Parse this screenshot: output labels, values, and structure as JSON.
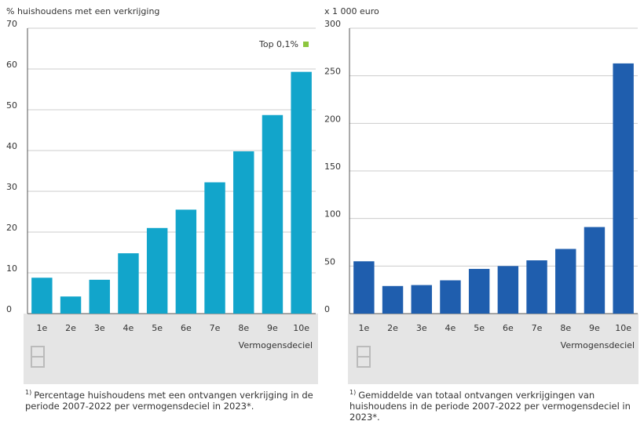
{
  "chart_data": [
    {
      "type": "bar",
      "y_label": "% huishoudens met een verkrijging",
      "categories": [
        "1e",
        "2e",
        "3e",
        "4e",
        "5e",
        "6e",
        "7e",
        "8e",
        "9e",
        "10e"
      ],
      "values": [
        8.8,
        4.2,
        8.3,
        14.8,
        21,
        25.5,
        32.2,
        39.8,
        48.7,
        59.3
      ],
      "color": "#12a5cb",
      "ylim": [
        0,
        70
      ],
      "yticks": [
        0,
        10,
        20,
        30,
        40,
        50,
        60,
        70
      ],
      "grid": true,
      "x_label": "Vermogensdeciel",
      "legend": {
        "label": "Top 0,1%",
        "color": "#8dc63f"
      },
      "note_marker": "1)",
      "note": "Percentage huishoudens met een ontvangen verkrijging in de periode 2007-2022 per vermogensdeciel in 2023*."
    },
    {
      "type": "bar",
      "y_label": "x 1 000 euro",
      "categories": [
        "1e",
        "2e",
        "3e",
        "4e",
        "5e",
        "6e",
        "7e",
        "8e",
        "9e",
        "10e"
      ],
      "values": [
        55,
        29,
        30,
        35,
        47,
        50,
        56,
        68,
        91,
        263
      ],
      "color": "#1f5eae",
      "ylim": [
        0,
        300
      ],
      "yticks": [
        0,
        50,
        100,
        150,
        200,
        250,
        300
      ],
      "grid": true,
      "x_label": "Vermogensdeciel",
      "note_marker": "1)",
      "note": "Gemiddelde van totaal ontvangen verkrijgingen van huishoudens in de periode 2007-2022 per vermogensdeciel in 2023*."
    }
  ]
}
